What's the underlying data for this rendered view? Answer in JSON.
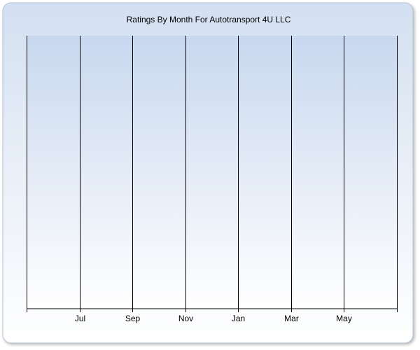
{
  "chart_data": {
    "type": "line",
    "title": "Ratings By Month For Autotransport 4U LLC",
    "categories": [
      null,
      "Jul",
      "Sep",
      "Nov",
      "Jan",
      "Mar",
      "May",
      null
    ],
    "grid": true
  }
}
